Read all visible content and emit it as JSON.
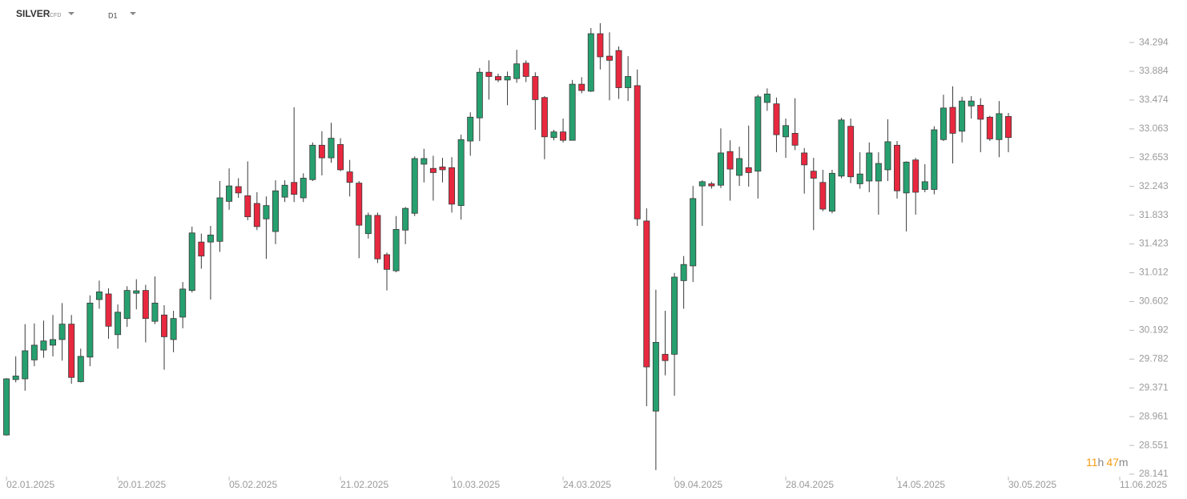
{
  "header": {
    "symbol": "SILVER",
    "symbol_type": "CFD",
    "timeframe": "D1"
  },
  "countdown": {
    "hours": "11",
    "hours_unit": "h",
    "minutes": "47",
    "minutes_unit": "m"
  },
  "chart_data": {
    "type": "candlestick",
    "up_color": "#26a06f",
    "down_color": "#e8283f",
    "outline_color": "#3a3a3a",
    "xlim": [
      -0.7,
      120
    ],
    "ylim": [
      28.141,
      34.786
    ],
    "xticks": [
      {
        "value": 0,
        "label": "02.01.2025"
      },
      {
        "value": 12,
        "label": "20.01.2025"
      },
      {
        "value": 24,
        "label": "05.02.2025"
      },
      {
        "value": 36,
        "label": "21.02.2025"
      },
      {
        "value": 48,
        "label": "10.03.2025"
      },
      {
        "value": 60,
        "label": "24.03.2025"
      },
      {
        "value": 72,
        "label": "09.04.2025"
      },
      {
        "value": 84,
        "label": "28.04.2025"
      },
      {
        "value": 96,
        "label": "14.05.2025"
      },
      {
        "value": 108,
        "label": "30.05.2025"
      },
      {
        "value": 120,
        "label": "11.06.2025"
      }
    ],
    "yticks": [
      28.141,
      28.551,
      28.961,
      29.371,
      29.782,
      30.192,
      30.602,
      31.012,
      31.423,
      31.833,
      32.243,
      32.653,
      33.063,
      33.474,
      33.884,
      34.294
    ],
    "open": [
      28.7,
      29.49,
      29.5,
      29.77,
      29.91,
      29.98,
      30.06,
      30.28,
      29.46,
      29.81,
      30.63,
      30.71,
      30.13,
      30.36,
      30.72,
      30.76,
      30.32,
      30.41,
      30.06,
      30.38,
      30.76,
      31.45,
      31.45,
      31.46,
      32.03,
      32.24,
      32.11,
      32.0,
      31.78,
      31.6,
      32.09,
      32.3,
      32.08,
      32.34,
      32.83,
      32.65,
      32.84,
      32.45,
      32.29,
      31.57,
      31.83,
      31.27,
      31.04,
      31.62,
      31.86,
      32.56,
      32.5,
      32.52,
      32.51,
      31.97,
      32.89,
      33.22,
      33.87,
      33.81,
      33.76,
      33.78,
      34.0,
      33.81,
      33.51,
      32.94,
      33.02,
      32.9,
      33.7,
      33.6,
      34.42,
      34.1,
      34.18,
      33.65,
      33.68,
      31.75,
      29.04,
      29.85,
      29.85,
      30.9,
      31.11,
      32.25,
      32.28,
      32.26,
      32.74,
      32.4,
      32.51,
      32.46,
      33.44,
      33.42,
      32.95,
      33.0,
      32.72,
      32.46,
      32.3,
      31.89,
      32.39,
      33.1,
      32.28,
      32.32,
      32.32,
      32.48,
      32.83,
      32.15,
      32.62,
      32.2,
      32.2,
      32.91,
      33.37,
      33.03,
      33.39,
      33.4,
      33.23,
      32.91,
      33.24
    ],
    "high": [
      29.51,
      29.82,
      30.28,
      30.29,
      30.33,
      30.41,
      30.58,
      30.41,
      29.93,
      30.69,
      30.9,
      30.79,
      30.56,
      30.82,
      30.92,
      30.84,
      30.96,
      30.55,
      30.47,
      30.88,
      31.67,
      31.57,
      31.68,
      32.32,
      32.5,
      32.36,
      32.6,
      32.16,
      32.1,
      32.33,
      32.33,
      33.37,
      32.43,
      32.87,
      33.03,
      33.15,
      32.93,
      32.62,
      32.32,
      31.87,
      31.87,
      31.3,
      31.82,
      31.95,
      32.67,
      32.78,
      32.68,
      32.65,
      32.66,
      32.98,
      33.3,
      33.93,
      34.04,
      33.85,
      33.88,
      34.19,
      34.04,
      33.87,
      33.53,
      33.05,
      33.21,
      33.76,
      33.8,
      34.5,
      34.57,
      34.44,
      34.24,
      34.1,
      33.91,
      31.93,
      30.77,
      30.47,
      31.01,
      31.25,
      32.25,
      32.33,
      32.31,
      33.07,
      32.9,
      32.81,
      33.11,
      33.55,
      33.64,
      33.51,
      33.21,
      33.5,
      32.79,
      32.65,
      32.48,
      32.48,
      33.22,
      33.21,
      32.73,
      32.87,
      32.73,
      33.2,
      32.89,
      32.6,
      32.65,
      32.56,
      33.1,
      33.55,
      33.67,
      33.52,
      33.53,
      33.5,
      33.25,
      33.46,
      33.29
    ],
    "low": [
      28.69,
      29.45,
      29.33,
      29.68,
      29.8,
      29.82,
      29.76,
      29.43,
      29.45,
      29.68,
      30.5,
      30.07,
      29.93,
      30.24,
      30.49,
      30.02,
      30.28,
      29.63,
      29.88,
      30.22,
      30.73,
      31.07,
      30.63,
      31.31,
      31.91,
      32.08,
      31.76,
      31.62,
      31.21,
      31.42,
      32.02,
      32.02,
      32.02,
      32.32,
      32.4,
      32.58,
      32.46,
      32.1,
      31.22,
      31.5,
      31.15,
      30.76,
      31.02,
      31.42,
      31.82,
      32.3,
      32.04,
      32.3,
      31.87,
      31.77,
      32.68,
      32.89,
      33.48,
      33.73,
      33.4,
      33.72,
      33.73,
      33.05,
      32.63,
      32.9,
      32.87,
      32.9,
      33.57,
      33.59,
      33.91,
      33.47,
      33.49,
      33.46,
      31.68,
      29.11,
      28.2,
      29.55,
      29.26,
      30.5,
      30.88,
      31.68,
      32.21,
      32.22,
      32.04,
      32.25,
      32.24,
      32.07,
      33.32,
      32.73,
      32.65,
      32.76,
      32.14,
      31.62,
      31.89,
      31.86,
      32.36,
      32.29,
      32.21,
      32.16,
      31.84,
      32.32,
      32.07,
      31.6,
      31.84,
      32.16,
      32.13,
      32.89,
      32.57,
      32.87,
      33.21,
      32.73,
      32.89,
      32.66,
      32.73
    ],
    "close": [
      29.5,
      29.54,
      29.9,
      29.98,
      30.04,
      30.06,
      30.28,
      29.52,
      29.82,
      30.58,
      30.74,
      30.25,
      30.45,
      30.76,
      30.755,
      30.36,
      30.58,
      30.1,
      30.36,
      30.78,
      31.58,
      31.25,
      31.55,
      32.08,
      32.25,
      32.15,
      31.81,
      31.67,
      31.97,
      32.18,
      32.26,
      32.13,
      32.36,
      32.83,
      32.65,
      32.93,
      32.48,
      32.3,
      31.69,
      31.83,
      31.21,
      31.06,
      31.63,
      31.93,
      32.64,
      32.64,
      32.44,
      32.48,
      31.99,
      32.91,
      33.23,
      33.87,
      33.81,
      33.76,
      33.81,
      33.99,
      33.81,
      33.48,
      32.95,
      33.02,
      32.9,
      33.7,
      33.61,
      34.42,
      34.09,
      34.04,
      33.65,
      33.81,
      31.78,
      29.67,
      30.02,
      29.76,
      30.95,
      31.13,
      32.07,
      32.31,
      32.25,
      32.72,
      32.49,
      32.64,
      32.44,
      33.52,
      33.56,
      32.98,
      33.11,
      32.83,
      32.55,
      32.36,
      31.92,
      32.43,
      33.19,
      32.38,
      32.42,
      32.72,
      32.57,
      32.88,
      32.18,
      32.59,
      32.16,
      32.31,
      33.05,
      33.36,
      33.0,
      33.46,
      33.46,
      33.2,
      32.92,
      33.28,
      32.94
    ]
  }
}
